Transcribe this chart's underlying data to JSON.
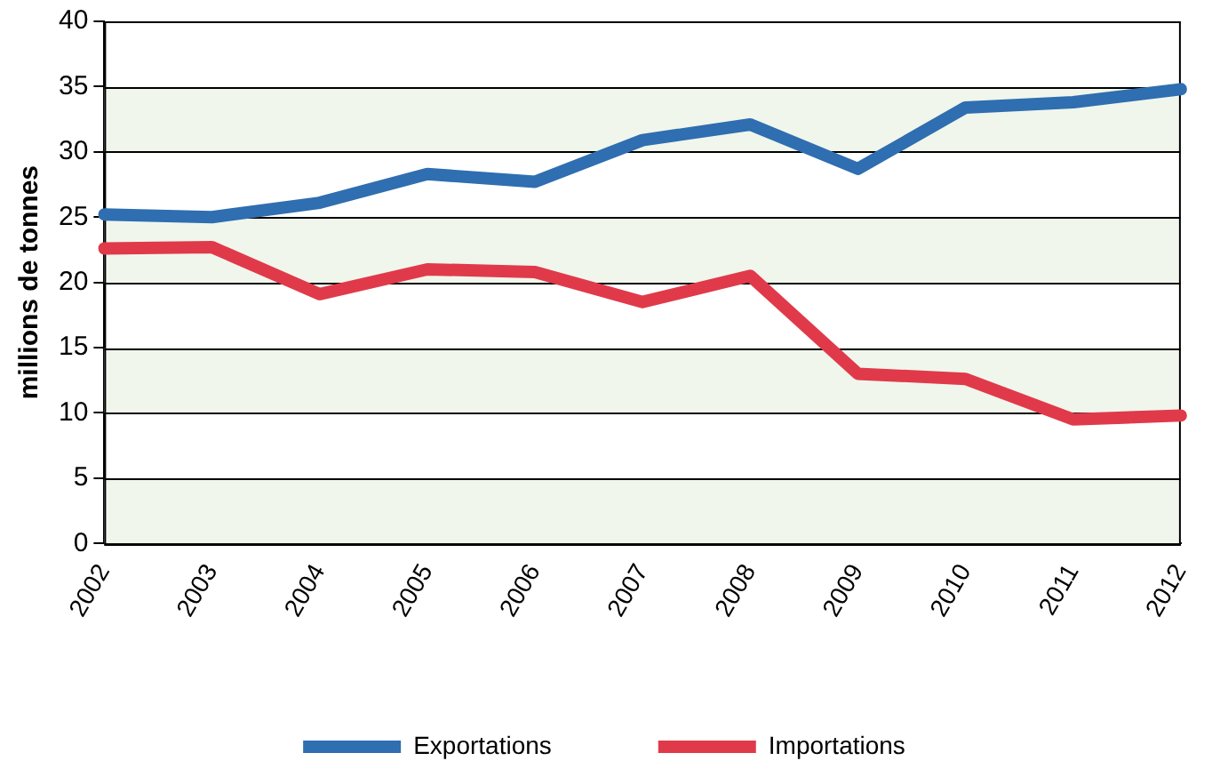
{
  "chart_data": {
    "type": "line",
    "ylabel": "millions de tonnes",
    "categories": [
      "2002",
      "2003",
      "2004",
      "2005",
      "2006",
      "2007",
      "2008",
      "2009",
      "2010",
      "2011",
      "2012"
    ],
    "series": [
      {
        "name": "Exportations",
        "color": "#2f6eb0",
        "values": [
          25.2,
          25.0,
          26.1,
          28.3,
          27.7,
          30.9,
          32.1,
          28.7,
          33.4,
          33.8,
          34.8
        ]
      },
      {
        "name": "Importations",
        "color": "#e03a4a",
        "values": [
          22.6,
          22.7,
          19.1,
          21.0,
          20.8,
          18.5,
          20.5,
          13.0,
          12.6,
          9.5,
          9.8
        ]
      }
    ],
    "ylim": [
      0,
      40
    ],
    "yticks": [
      0,
      5,
      10,
      15,
      20,
      25,
      30,
      35,
      40
    ],
    "grid": "y",
    "legend": "bottom",
    "marker": "none",
    "line_style": "solid",
    "bands": [
      {
        "axis": "y",
        "from": 0,
        "to": 5,
        "color": "#f0f6ec"
      },
      {
        "axis": "y",
        "from": 10,
        "to": 15,
        "color": "#f0f6ec"
      },
      {
        "axis": "y",
        "from": 20,
        "to": 25,
        "color": "#f0f6ec"
      },
      {
        "axis": "y",
        "from": 30,
        "to": 35,
        "color": "#f0f6ec"
      }
    ]
  }
}
